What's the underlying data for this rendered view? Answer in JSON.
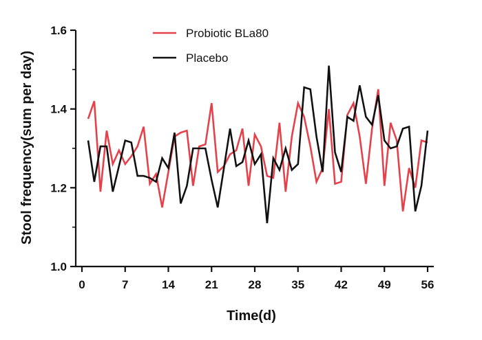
{
  "chart_data": {
    "type": "line",
    "title": "",
    "xlabel": "Time(d)",
    "ylabel": "Stool frequency(sum per day)",
    "xlim": [
      0,
      57
    ],
    "ylim": [
      1.0,
      1.6
    ],
    "x_ticks": [
      0,
      7,
      14,
      21,
      28,
      35,
      42,
      49,
      56
    ],
    "y_ticks": [
      1.0,
      1.2,
      1.4,
      1.6
    ],
    "y_tick_labels": [
      "1.0",
      "1.2",
      "1.4",
      "1.6"
    ],
    "x": [
      1,
      2,
      3,
      4,
      5,
      6,
      7,
      8,
      9,
      10,
      11,
      12,
      13,
      14,
      15,
      16,
      17,
      18,
      19,
      20,
      21,
      22,
      23,
      24,
      25,
      26,
      27,
      28,
      29,
      30,
      31,
      32,
      33,
      34,
      35,
      36,
      37,
      38,
      39,
      40,
      41,
      42,
      43,
      44,
      45,
      46,
      47,
      48,
      49,
      50,
      51,
      52,
      53,
      54,
      55,
      56
    ],
    "series": [
      {
        "name": "Probiotic BLa80",
        "color": "#e5414b",
        "values": [
          1.375,
          1.42,
          1.19,
          1.345,
          1.26,
          1.295,
          1.26,
          1.28,
          1.305,
          1.355,
          1.21,
          1.235,
          1.15,
          1.24,
          1.33,
          1.34,
          1.345,
          1.205,
          1.305,
          1.31,
          1.415,
          1.24,
          1.255,
          1.285,
          1.295,
          1.35,
          1.205,
          1.335,
          1.305,
          1.23,
          1.225,
          1.365,
          1.19,
          1.33,
          1.415,
          1.38,
          1.305,
          1.215,
          1.25,
          1.4,
          1.21,
          1.215,
          1.385,
          1.415,
          1.33,
          1.21,
          1.35,
          1.45,
          1.205,
          1.365,
          1.32,
          1.14,
          1.25,
          1.2,
          1.32,
          1.315
        ]
      },
      {
        "name": "Placebo",
        "color": "#111111",
        "values": [
          1.32,
          1.215,
          1.305,
          1.305,
          1.19,
          1.255,
          1.32,
          1.315,
          1.23,
          1.23,
          1.225,
          1.215,
          1.275,
          1.25,
          1.34,
          1.16,
          1.205,
          1.3,
          1.3,
          1.3,
          1.22,
          1.15,
          1.25,
          1.35,
          1.255,
          1.265,
          1.32,
          1.26,
          1.285,
          1.11,
          1.275,
          1.245,
          1.3,
          1.245,
          1.26,
          1.455,
          1.45,
          1.33,
          1.24,
          1.51,
          1.29,
          1.24,
          1.38,
          1.37,
          1.46,
          1.38,
          1.36,
          1.435,
          1.32,
          1.3,
          1.305,
          1.35,
          1.355,
          1.14,
          1.205,
          1.345
        ]
      }
    ],
    "legend": {
      "position": "top",
      "entries": [
        "Probiotic BLa80",
        "Placebo"
      ]
    },
    "grid": false
  }
}
